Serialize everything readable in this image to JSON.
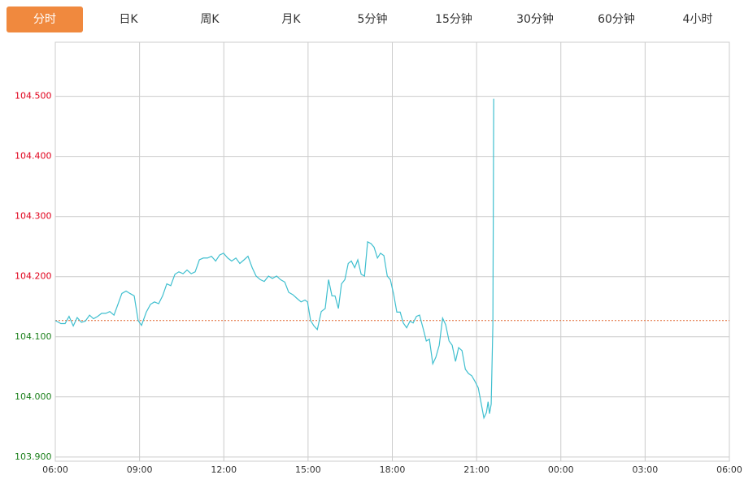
{
  "tabs": {
    "items": [
      "分时",
      "日K",
      "周K",
      "月K",
      "5分钟",
      "15分钟",
      "30分钟",
      "60分钟",
      "4小时"
    ],
    "active": 0
  },
  "chart_data": {
    "type": "line",
    "x": [
      0.0,
      0.2,
      0.35,
      0.49,
      0.64,
      0.78,
      0.93,
      1.07,
      1.22,
      1.36,
      1.51,
      1.65,
      1.8,
      1.94,
      2.09,
      2.23,
      2.37,
      2.52,
      2.66,
      2.81,
      2.95,
      3.07,
      3.24,
      3.39,
      3.53,
      3.68,
      3.82,
      3.97,
      4.11,
      4.26,
      4.4,
      4.55,
      4.69,
      4.84,
      4.98,
      5.13,
      5.27,
      5.42,
      5.56,
      5.71,
      5.85,
      5.99,
      6.14,
      6.28,
      6.43,
      6.57,
      6.72,
      6.86,
      7.01,
      7.15,
      7.3,
      7.44,
      7.59,
      7.73,
      7.88,
      8.02,
      8.17,
      8.31,
      8.46,
      8.6,
      8.75,
      8.89,
      8.98,
      9.09,
      9.21,
      9.33,
      9.47,
      9.61,
      9.73,
      9.85,
      9.96,
      10.08,
      10.19,
      10.31,
      10.43,
      10.54,
      10.66,
      10.77,
      10.89,
      11.01,
      11.12,
      11.24,
      11.35,
      11.47,
      11.58,
      11.7,
      11.82,
      11.93,
      12.05,
      12.16,
      12.28,
      12.39,
      12.51,
      12.63,
      12.74,
      12.86,
      12.97,
      13.09,
      13.21,
      13.32,
      13.44,
      13.55,
      13.67,
      13.79,
      13.9,
      14.02,
      14.13,
      14.25,
      14.36,
      14.48,
      14.6,
      14.71,
      14.83,
      14.94,
      15.06,
      15.18,
      15.26,
      15.35,
      15.41,
      15.46,
      15.52,
      15.58,
      15.61
    ],
    "series": [
      {
        "color": "#3fbfcf",
        "values": [
          104.127,
          104.122,
          104.122,
          104.134,
          104.118,
          104.132,
          104.124,
          104.126,
          104.136,
          104.13,
          104.134,
          104.139,
          104.139,
          104.142,
          104.136,
          104.154,
          104.172,
          104.176,
          104.172,
          104.168,
          104.127,
          104.119,
          104.141,
          104.154,
          104.158,
          104.155,
          104.168,
          104.188,
          104.185,
          104.204,
          104.208,
          104.205,
          104.211,
          104.205,
          104.208,
          104.228,
          104.231,
          104.231,
          104.234,
          104.226,
          104.236,
          104.239,
          104.231,
          104.226,
          104.231,
          104.222,
          104.228,
          104.234,
          104.215,
          104.201,
          104.195,
          104.192,
          104.201,
          104.197,
          104.201,
          104.195,
          104.191,
          104.174,
          104.17,
          104.164,
          104.158,
          104.161,
          104.158,
          104.127,
          104.118,
          104.112,
          104.142,
          104.147,
          104.195,
          104.168,
          104.168,
          104.147,
          104.188,
          104.195,
          104.222,
          104.226,
          104.215,
          104.228,
          104.204,
          104.201,
          104.258,
          104.255,
          104.249,
          104.231,
          104.239,
          104.235,
          104.201,
          104.195,
          104.17,
          104.141,
          104.141,
          104.123,
          104.115,
          104.126,
          104.123,
          104.134,
          104.136,
          104.115,
          104.093,
          104.096,
          104.055,
          104.066,
          104.086,
          104.131,
          104.12,
          104.093,
          104.086,
          104.059,
          104.082,
          104.077,
          104.046,
          104.039,
          104.035,
          104.026,
          104.015,
          103.985,
          103.965,
          103.974,
          103.992,
          103.972,
          103.988,
          104.12,
          104.496
        ]
      }
    ],
    "reference_line": {
      "value": 104.127,
      "color": "#e0632b"
    },
    "up_color": "#e0001b",
    "down_color": "#1a7f1a",
    "xlim": [
      0,
      24
    ],
    "xticks": [
      {
        "value": 0,
        "label": "06:00"
      },
      {
        "value": 3,
        "label": "09:00"
      },
      {
        "value": 6,
        "label": "12:00"
      },
      {
        "value": 9,
        "label": "15:00"
      },
      {
        "value": 12,
        "label": "18:00"
      },
      {
        "value": 15,
        "label": "21:00"
      },
      {
        "value": 18,
        "label": "00:00"
      },
      {
        "value": 21,
        "label": "03:00"
      },
      {
        "value": 24,
        "label": "06:00"
      }
    ],
    "ylim": [
      103.893,
      104.59
    ],
    "yticks": [
      {
        "value": 103.9,
        "label": "103.900"
      },
      {
        "value": 104.0,
        "label": "104.000"
      },
      {
        "value": 104.1,
        "label": "104.100"
      },
      {
        "value": 104.2,
        "label": "104.200"
      },
      {
        "value": 104.3,
        "label": "104.300"
      },
      {
        "value": 104.4,
        "label": "104.400"
      },
      {
        "value": 104.5,
        "label": "104.500"
      }
    ],
    "grid": true
  }
}
